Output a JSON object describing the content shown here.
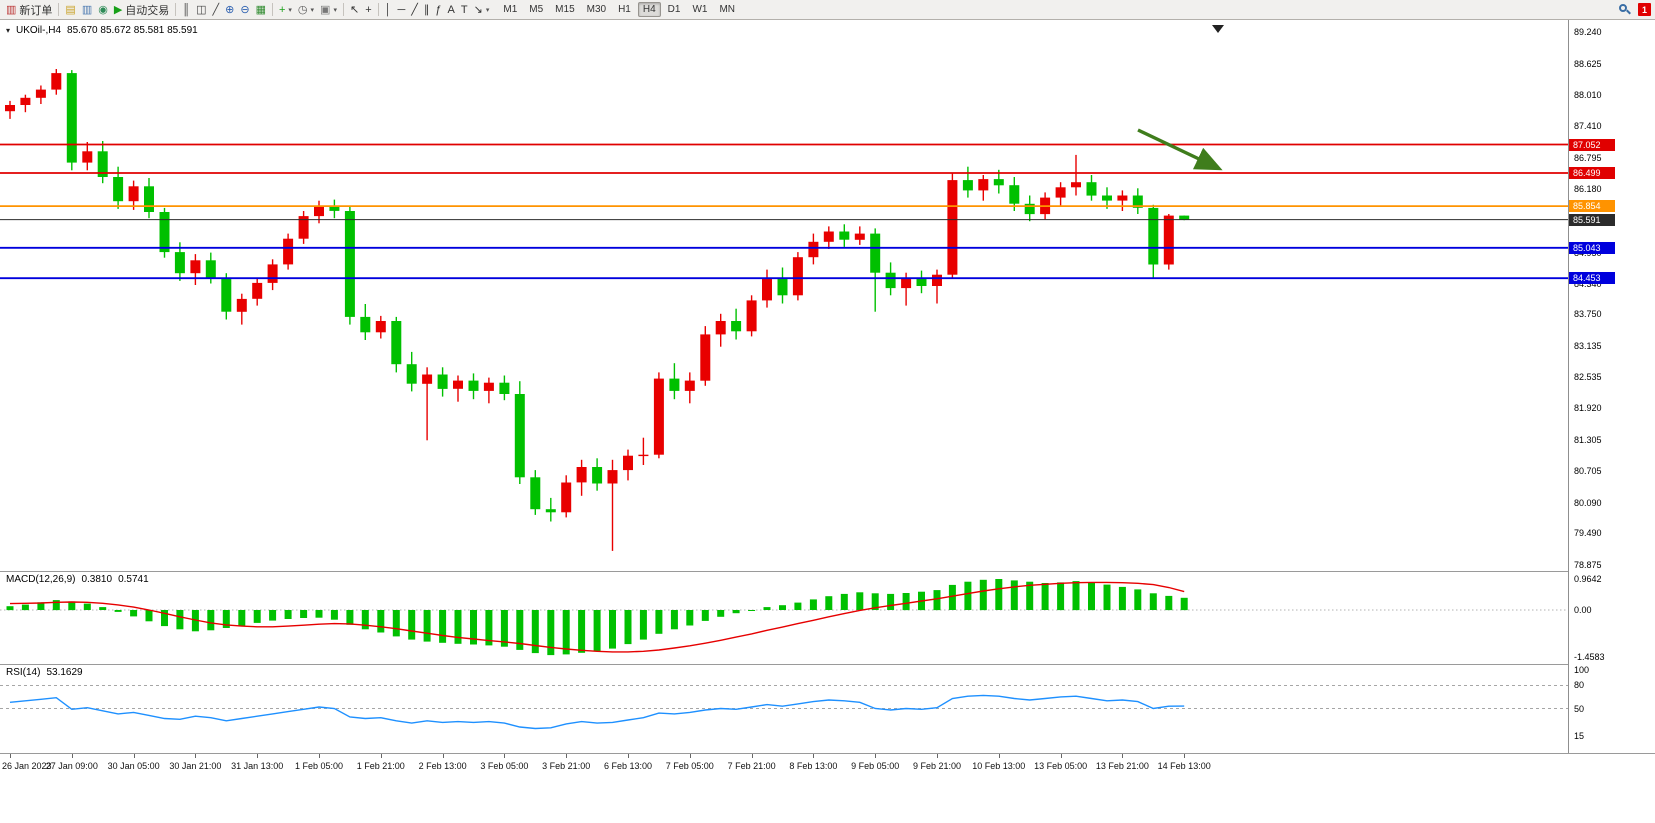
{
  "toolbar": {
    "notification_count": "1",
    "timeframes": [
      "M1",
      "M5",
      "M15",
      "M30",
      "H1",
      "H4",
      "D1",
      "W1",
      "MN"
    ],
    "active_timeframe": "H4",
    "items": [
      {
        "name": "new-order-button",
        "label": "新订单",
        "icon": "▥",
        "icon_name": "new-order-icon",
        "icon_color": "#bb3333"
      },
      {
        "type": "sep"
      },
      {
        "name": "charts-button",
        "icon": "▤",
        "icon_name": "charts-icon",
        "icon_color": "#c9a227"
      },
      {
        "name": "profiles-button",
        "icon": "▥",
        "icon_name": "profiles-icon",
        "icon_color": "#4a78b0"
      },
      {
        "name": "refresh-button",
        "icon": "◉",
        "icon_name": "refresh-icon",
        "icon_color": "#2e8b57"
      },
      {
        "name": "autotrade-button",
        "label": "自动交易",
        "icon": "▶",
        "icon_name": "autotrade-play-icon",
        "icon_color": "#18a018"
      },
      {
        "type": "sep"
      },
      {
        "name": "bar-chart-button",
        "icon": "║",
        "icon_name": "bar-chart-icon",
        "icon_color": "#444"
      },
      {
        "name": "candlestick-chart-button",
        "icon": "◫",
        "icon_name": "candlestick-icon",
        "icon_color": "#444"
      },
      {
        "name": "line-chart-button",
        "icon": "╱",
        "icon_name": "line-chart-icon",
        "icon_color": "#444"
      },
      {
        "name": "zoom-in-button",
        "icon": "⊕",
        "icon_name": "zoom-in-icon",
        "icon_color": "#2b5fb0"
      },
      {
        "name": "zoom-out-button",
        "icon": "⊖",
        "icon_name": "zoom-out-icon",
        "icon_color": "#2b5fb0"
      },
      {
        "name": "tile-windows-button",
        "icon": "▦",
        "icon_name": "grid-icon",
        "icon_color": "#2e8b2e"
      },
      {
        "type": "sep"
      },
      {
        "name": "indicators-button",
        "icon": "+",
        "icon_name": "indicators-plus-icon",
        "icon_color": "#18a018",
        "dropdown": true
      },
      {
        "name": "periods-button",
        "icon": "◷",
        "icon_name": "clock-icon",
        "icon_color": "#555",
        "dropdown": true
      },
      {
        "name": "templates-button",
        "icon": "▣",
        "icon_name": "template-icon",
        "icon_color": "#777",
        "dropdown": true
      },
      {
        "type": "sep"
      },
      {
        "name": "cursor-button",
        "icon": "↖",
        "icon_name": "cursor-icon",
        "icon_color": "#333"
      },
      {
        "name": "crosshair-button",
        "icon": "+",
        "icon_name": "crosshair-icon",
        "icon_color": "#333"
      },
      {
        "type": "sep"
      },
      {
        "name": "vertical-line-button",
        "icon": "│",
        "icon_name": "vertical-line-icon",
        "icon_color": "#333"
      },
      {
        "name": "horizontal-line-button",
        "icon": "─",
        "icon_name": "horizontal-line-icon",
        "icon_color": "#333"
      },
      {
        "name": "trendline-button",
        "icon": "╱",
        "icon_name": "trendline-icon",
        "icon_color": "#333"
      },
      {
        "name": "channel-button",
        "icon": "∥",
        "icon_name": "channel-icon",
        "icon_color": "#333"
      },
      {
        "name": "fibonacci-button",
        "icon": "ƒ",
        "icon_name": "fibonacci-icon",
        "icon_color": "#333"
      },
      {
        "name": "text-button",
        "icon": "A",
        "icon_name": "text-icon",
        "icon_color": "#333"
      },
      {
        "name": "label-button",
        "icon": "T",
        "icon_name": "text-label-icon",
        "icon_color": "#333"
      },
      {
        "name": "arrows-button",
        "icon": "↘",
        "icon_name": "arrow-object-icon",
        "icon_color": "#333",
        "dropdown": true
      }
    ]
  },
  "chart": {
    "symbol_label": "UKOil-,H4",
    "ohlc_label": "85.670 85.672 85.581 85.591"
  },
  "macd": {
    "name": "MACD(12,26,9)",
    "value1": "0.3810",
    "value2": "0.5741",
    "axis": [
      "0.9642",
      "0.00",
      "-1.4583"
    ]
  },
  "rsi": {
    "name": "RSI(14)",
    "value": "53.1629",
    "axis": [
      "100",
      "80",
      "50",
      "15"
    ]
  },
  "colors": {
    "bull": "#e80000",
    "bear": "#00c000",
    "macd_hist": "#00c000",
    "macd_signal": "#e60000",
    "rsi_line": "#1e90ff",
    "arrow": "#3f7d1c",
    "current_price_line": "#2b2b2b"
  },
  "annotations": {
    "trend_arrow": {
      "name": "downtrend-arrow",
      "direction": "down-right",
      "color": "#3f7d1c"
    },
    "chart_shift_marker": {
      "name": "chart-shift-marker",
      "color": "#222222"
    }
  },
  "chart_data": {
    "type": "candlestick",
    "symbol": "UKOil-",
    "timeframe": "H4",
    "ohlc_current": {
      "open": "85.670",
      "high": "85.672",
      "low": "85.581",
      "close": "85.591"
    },
    "price_axis": {
      "min": 78.875,
      "max": 89.24,
      "ticks": [
        "89.240",
        "88.625",
        "88.010",
        "87.410",
        "86.795",
        "86.180",
        "85.570",
        "84.950",
        "84.340",
        "83.750",
        "83.135",
        "82.535",
        "81.920",
        "81.305",
        "80.705",
        "80.090",
        "79.490",
        "78.875"
      ]
    },
    "levels": [
      {
        "price": 87.052,
        "label": "87.052",
        "color": "#e00000",
        "kind": "resistance"
      },
      {
        "price": 86.499,
        "label": "86.499",
        "color": "#e00000",
        "kind": "resistance"
      },
      {
        "price": 85.854,
        "label": "85.854",
        "color": "#ff9300",
        "kind": "pivot"
      },
      {
        "price": 85.043,
        "label": "85.043",
        "color": "#0000dd",
        "kind": "support"
      },
      {
        "price": 84.453,
        "label": "84.453",
        "color": "#0000dd",
        "kind": "support"
      }
    ],
    "current_price": {
      "value": 85.591,
      "label": "85.591",
      "color": "#2b2b2b"
    },
    "candles": [
      [
        87.7,
        87.9,
        87.55,
        87.82
      ],
      [
        87.82,
        88.02,
        87.68,
        87.96
      ],
      [
        87.96,
        88.2,
        87.84,
        88.12
      ],
      [
        88.12,
        88.52,
        88.02,
        88.44
      ],
      [
        88.44,
        88.5,
        86.55,
        86.7
      ],
      [
        86.7,
        87.1,
        86.55,
        86.92
      ],
      [
        86.92,
        87.12,
        86.3,
        86.42
      ],
      [
        86.42,
        86.62,
        85.8,
        85.95
      ],
      [
        85.95,
        86.35,
        85.78,
        86.24
      ],
      [
        86.24,
        86.4,
        85.62,
        85.74
      ],
      [
        85.74,
        85.82,
        84.85,
        84.96
      ],
      [
        84.96,
        85.15,
        84.4,
        84.55
      ],
      [
        84.55,
        84.92,
        84.32,
        84.8
      ],
      [
        84.8,
        84.95,
        84.35,
        84.46
      ],
      [
        84.46,
        84.55,
        83.65,
        83.8
      ],
      [
        83.8,
        84.15,
        83.55,
        84.05
      ],
      [
        84.05,
        84.45,
        83.92,
        84.36
      ],
      [
        84.36,
        84.82,
        84.22,
        84.72
      ],
      [
        84.72,
        85.32,
        84.62,
        85.22
      ],
      [
        85.22,
        85.76,
        85.12,
        85.66
      ],
      [
        85.66,
        85.96,
        85.52,
        85.86
      ],
      [
        85.86,
        85.98,
        85.62,
        85.76
      ],
      [
        85.76,
        85.86,
        83.55,
        83.7
      ],
      [
        83.7,
        83.95,
        83.25,
        83.4
      ],
      [
        83.4,
        83.72,
        83.28,
        83.62
      ],
      [
        83.62,
        83.7,
        82.62,
        82.78
      ],
      [
        82.78,
        83.02,
        82.25,
        82.4
      ],
      [
        82.4,
        82.72,
        81.3,
        82.58
      ],
      [
        82.58,
        82.72,
        82.15,
        82.3
      ],
      [
        82.3,
        82.56,
        82.05,
        82.46
      ],
      [
        82.46,
        82.6,
        82.1,
        82.26
      ],
      [
        82.26,
        82.52,
        82.02,
        82.42
      ],
      [
        82.42,
        82.56,
        82.08,
        82.2
      ],
      [
        82.2,
        82.45,
        80.45,
        80.58
      ],
      [
        80.58,
        80.72,
        79.85,
        79.96
      ],
      [
        79.96,
        80.18,
        79.72,
        79.9
      ],
      [
        79.9,
        80.62,
        79.8,
        80.48
      ],
      [
        80.48,
        80.92,
        80.22,
        80.78
      ],
      [
        80.78,
        80.95,
        80.32,
        80.46
      ],
      [
        80.46,
        80.92,
        79.15,
        80.72
      ],
      [
        80.72,
        81.12,
        80.52,
        81.0
      ],
      [
        81.0,
        81.35,
        80.82,
        81.02
      ],
      [
        81.02,
        82.62,
        80.95,
        82.5
      ],
      [
        82.5,
        82.8,
        82.1,
        82.26
      ],
      [
        82.26,
        82.62,
        82.02,
        82.46
      ],
      [
        82.46,
        83.52,
        82.36,
        83.36
      ],
      [
        83.36,
        83.76,
        83.12,
        83.62
      ],
      [
        83.62,
        83.86,
        83.26,
        83.42
      ],
      [
        83.42,
        84.12,
        83.32,
        84.02
      ],
      [
        84.02,
        84.62,
        83.88,
        84.46
      ],
      [
        84.46,
        84.66,
        83.96,
        84.12
      ],
      [
        84.12,
        84.96,
        84.02,
        84.86
      ],
      [
        84.86,
        85.32,
        84.72,
        85.16
      ],
      [
        85.16,
        85.46,
        85.02,
        85.36
      ],
      [
        85.36,
        85.5,
        85.06,
        85.2
      ],
      [
        85.2,
        85.46,
        85.1,
        85.32
      ],
      [
        85.32,
        85.42,
        83.8,
        84.56
      ],
      [
        84.56,
        84.76,
        84.12,
        84.26
      ],
      [
        84.26,
        84.56,
        83.92,
        84.46
      ],
      [
        84.46,
        84.6,
        84.16,
        84.3
      ],
      [
        84.3,
        84.62,
        83.96,
        84.52
      ],
      [
        84.52,
        86.49,
        84.46,
        86.36
      ],
      [
        86.36,
        86.62,
        86.02,
        86.16
      ],
      [
        86.16,
        86.46,
        85.96,
        86.38
      ],
      [
        86.38,
        86.56,
        86.1,
        86.26
      ],
      [
        86.26,
        86.42,
        85.76,
        85.9
      ],
      [
        85.9,
        86.06,
        85.56,
        85.7
      ],
      [
        85.7,
        86.12,
        85.6,
        86.02
      ],
      [
        86.02,
        86.32,
        85.86,
        86.22
      ],
      [
        86.22,
        86.85,
        86.06,
        86.32
      ],
      [
        86.32,
        86.46,
        85.96,
        86.06
      ],
      [
        86.06,
        86.22,
        85.8,
        85.96
      ],
      [
        85.96,
        86.16,
        85.76,
        86.06
      ],
      [
        86.06,
        86.2,
        85.7,
        85.82
      ],
      [
        85.82,
        85.88,
        84.46,
        84.72
      ],
      [
        84.72,
        85.7,
        84.62,
        85.67
      ],
      [
        85.67,
        85.672,
        85.581,
        85.591
      ]
    ],
    "macd": {
      "range": {
        "max": 0.9642,
        "min": -1.4583
      },
      "current": [
        0.381,
        0.5741
      ],
      "histogram": [
        0.12,
        0.17,
        0.24,
        0.31,
        0.27,
        0.2,
        0.09,
        -0.06,
        -0.2,
        -0.35,
        -0.5,
        -0.6,
        -0.66,
        -0.63,
        -0.56,
        -0.48,
        -0.4,
        -0.33,
        -0.28,
        -0.25,
        -0.24,
        -0.3,
        -0.46,
        -0.6,
        -0.7,
        -0.82,
        -0.92,
        -0.98,
        -1.02,
        -1.05,
        -1.07,
        -1.1,
        -1.14,
        -1.24,
        -1.34,
        -1.4,
        -1.38,
        -1.33,
        -1.28,
        -1.2,
        -1.06,
        -0.92,
        -0.74,
        -0.6,
        -0.48,
        -0.34,
        -0.21,
        -0.1,
        0.0,
        0.09,
        0.15,
        0.23,
        0.33,
        0.43,
        0.5,
        0.55,
        0.52,
        0.5,
        0.53,
        0.57,
        0.62,
        0.78,
        0.88,
        0.94,
        0.964,
        0.92,
        0.88,
        0.84,
        0.86,
        0.9,
        0.86,
        0.79,
        0.72,
        0.64,
        0.52,
        0.44,
        0.381
      ],
      "signal": [
        0.2,
        0.21,
        0.22,
        0.24,
        0.25,
        0.24,
        0.21,
        0.16,
        0.09,
        0.0,
        -0.1,
        -0.21,
        -0.31,
        -0.4,
        -0.46,
        -0.5,
        -0.52,
        -0.52,
        -0.5,
        -0.47,
        -0.44,
        -0.42,
        -0.43,
        -0.47,
        -0.52,
        -0.58,
        -0.65,
        -0.72,
        -0.79,
        -0.85,
        -0.9,
        -0.95,
        -0.99,
        -1.04,
        -1.1,
        -1.16,
        -1.21,
        -1.25,
        -1.28,
        -1.3,
        -1.3,
        -1.28,
        -1.24,
        -1.18,
        -1.11,
        -1.03,
        -0.94,
        -0.84,
        -0.74,
        -0.63,
        -0.53,
        -0.42,
        -0.32,
        -0.21,
        -0.11,
        -0.01,
        0.07,
        0.14,
        0.21,
        0.28,
        0.35,
        0.43,
        0.51,
        0.59,
        0.66,
        0.72,
        0.77,
        0.8,
        0.83,
        0.85,
        0.86,
        0.86,
        0.85,
        0.83,
        0.79,
        0.7,
        0.5741
      ]
    },
    "rsi": {
      "range": [
        0,
        100
      ],
      "levels": [
        80,
        50
      ],
      "current": 53.1629,
      "values": [
        58,
        60,
        62,
        64,
        49,
        51,
        47,
        43,
        45,
        41,
        37,
        36,
        40,
        38,
        34,
        37,
        40,
        43,
        46,
        49,
        52,
        50,
        39,
        37,
        38,
        34,
        31,
        34,
        32,
        33,
        32,
        33,
        31,
        26,
        24,
        25,
        30,
        33,
        31,
        32,
        35,
        38,
        44,
        43,
        45,
        48,
        50,
        49,
        52,
        55,
        53,
        56,
        59,
        61,
        60,
        58,
        50,
        48,
        50,
        49,
        51,
        63,
        66,
        67,
        66,
        63,
        61,
        63,
        65,
        66,
        63,
        60,
        61,
        59,
        50,
        53,
        53.16
      ],
      "ylabel": ""
    },
    "time_labels": [
      "26 Jan 2023",
      "27 Jan 09:00",
      "30 Jan 05:00",
      "30 Jan 21:00",
      "31 Jan 13:00",
      "1 Feb 05:00",
      "1 Feb 21:00",
      "2 Feb 13:00",
      "3 Feb 05:00",
      "3 Feb 21:00",
      "6 Feb 13:00",
      "7 Feb 05:00",
      "7 Feb 21:00",
      "8 Feb 13:00",
      "9 Feb 05:00",
      "9 Feb 21:00",
      "10 Feb 13:00",
      "13 Feb 05:00",
      "13 Feb 21:00",
      "14 Feb 13:00"
    ]
  }
}
